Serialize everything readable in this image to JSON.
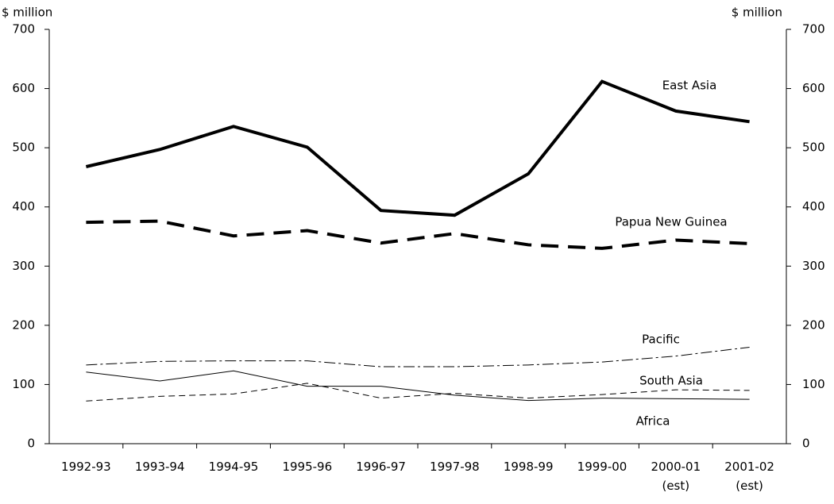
{
  "chart_data": {
    "type": "line",
    "y_label": "$ million",
    "y2_label": "$ million",
    "categories": [
      "1992-93",
      "1993-94",
      "1994-95",
      "1995-96",
      "1996-97",
      "1997-98",
      "1998-99",
      "1999-00",
      "2000-01\n(est)",
      "2001-02\n(est)"
    ],
    "series": [
      {
        "name": "East Asia",
        "color": "#000000",
        "style": "solid",
        "width": 4,
        "values": [
          468,
          497,
          536,
          501,
          394,
          386,
          456,
          612,
          562,
          544
        ]
      },
      {
        "name": "Papua New Guinea",
        "color": "#000000",
        "style": "dashed",
        "width": 4,
        "values": [
          374,
          376,
          351,
          360,
          339,
          355,
          336,
          330,
          344,
          338
        ]
      },
      {
        "name": "Pacific",
        "color": "#000000",
        "style": "dashdot",
        "width": 1,
        "values": [
          133,
          139,
          140,
          140,
          130,
          130,
          133,
          138,
          148,
          163
        ]
      },
      {
        "name": "South Asia",
        "color": "#000000",
        "style": "dashed",
        "width": 1,
        "values": [
          72,
          80,
          84,
          102,
          77,
          85,
          77,
          83,
          91,
          90
        ]
      },
      {
        "name": "Africa",
        "color": "#000000",
        "style": "solid",
        "width": 1,
        "values": [
          121,
          106,
          123,
          97,
          97,
          82,
          73,
          77,
          76,
          75
        ]
      }
    ],
    "ylim": [
      0,
      700
    ],
    "yticks": [
      0,
      100,
      200,
      300,
      400,
      500,
      600,
      700
    ],
    "y2lim": [
      0,
      700
    ],
    "y2ticks": [
      0,
      100,
      200,
      300,
      400,
      500,
      600,
      700
    ],
    "grid": false
  }
}
